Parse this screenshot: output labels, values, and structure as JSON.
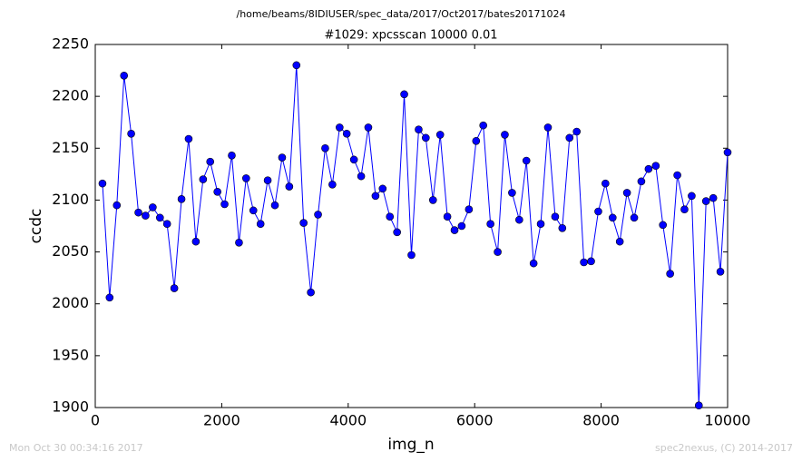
{
  "chart_data": {
    "type": "line",
    "suptitle": "/home/beams/8IDIUSER/spec_data/2017/Oct2017/bates20171024",
    "title": "#1029: xpcsscan 10000 0.01",
    "xlabel": "img_n",
    "ylabel": "ccdc",
    "color": "#0000ff",
    "marker": "circle",
    "xlim": [
      0,
      10000
    ],
    "xticks": [
      0,
      2000,
      4000,
      6000,
      8000,
      10000
    ],
    "ylim": [
      1900,
      2250
    ],
    "yticks": [
      1900,
      1950,
      2000,
      2050,
      2100,
      2150,
      2200,
      2250
    ],
    "x": [
      114,
      227,
      341,
      455,
      568,
      682,
      795,
      909,
      1023,
      1136,
      1250,
      1364,
      1477,
      1591,
      1705,
      1818,
      1932,
      2045,
      2159,
      2273,
      2386,
      2500,
      2614,
      2727,
      2841,
      2955,
      3068,
      3182,
      3295,
      3409,
      3523,
      3636,
      3750,
      3864,
      3977,
      4091,
      4205,
      4318,
      4432,
      4545,
      4659,
      4773,
      4886,
      5000,
      5114,
      5227,
      5341,
      5455,
      5568,
      5682,
      5795,
      5909,
      6023,
      6136,
      6250,
      6364,
      6477,
      6591,
      6705,
      6818,
      6932,
      7045,
      7159,
      7273,
      7386,
      7500,
      7614,
      7727,
      7841,
      7955,
      8068,
      8182,
      8295,
      8409,
      8523,
      8636,
      8750,
      8864,
      8977,
      9091,
      9205,
      9318,
      9432,
      9545,
      9659,
      9773,
      9886,
      10000
    ],
    "values": [
      2116,
      2006,
      2095,
      2220,
      2164,
      2088,
      2085,
      2093,
      2083,
      2077,
      2015,
      2101,
      2159,
      2060,
      2120,
      2137,
      2108,
      2096,
      2143,
      2059,
      2121,
      2090,
      2077,
      2119,
      2095,
      2141,
      2113,
      2230,
      2078,
      2011,
      2086,
      2150,
      2115,
      2170,
      2164,
      2139,
      2123,
      2170,
      2104,
      2111,
      2084,
      2069,
      2202,
      2047,
      2168,
      2160,
      2100,
      2163,
      2084,
      2071,
      2075,
      2091,
      2157,
      2172,
      2077,
      2050,
      2163,
      2107,
      2081,
      2138,
      2039,
      2077,
      2170,
      2084,
      2073,
      2160,
      2166,
      2040,
      2041,
      2089,
      2116,
      2083,
      2060,
      2107,
      2083,
      2118,
      2130,
      2133,
      2076,
      2029,
      2124,
      2091,
      2104,
      1902,
      2099,
      2102,
      2031,
      2146
    ]
  },
  "footer": {
    "timestamp": "Mon Oct 30 00:34:16 2017",
    "credit": "spec2nexus, (C) 2014-2017"
  }
}
